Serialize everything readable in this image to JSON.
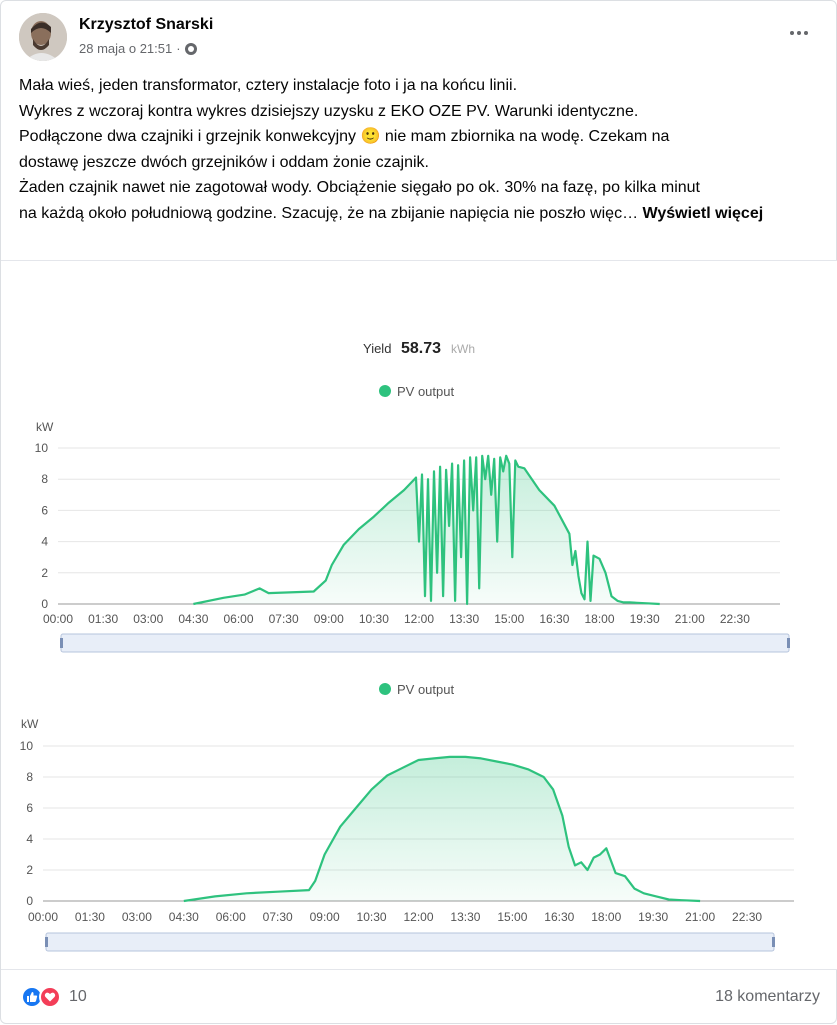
{
  "post": {
    "author": "Krzysztof Snarski",
    "timestamp": "28 maja o 21:51",
    "privacy_icon": "globe-icon",
    "more_icon": "more-options-icon",
    "lines": [
      "Mała wieś, jeden transformator, cztery instalacje foto i ja na końcu linii.",
      "Wykres z wczoraj kontra wykres dzisiejszy uzysku z EKO OZE PV. Warunki identyczne.",
      "Podłączone dwa czajniki i grzejnik konwekcyjny 🙂 nie mam zbiornika na wodę. Czekam na",
      "dostawę jeszcze dwóch grzejników i oddam żonie czajnik.",
      "Żaden czajnik nawet nie zagotował wody. Obciążenie sięgało po ok. 30% na fazę, po kilka minut",
      "na każdą około południową godzine. Szacuję, że na zbijanie napięcia nie poszło więc…"
    ],
    "see_more": "Wyświetl więcej"
  },
  "chart_header": {
    "yield_label": "Yield",
    "yield_value": "58.73",
    "yield_unit": "kWh"
  },
  "colors": {
    "series": "#2ec27e",
    "axis_text": "#555555",
    "grid": "#e6e6e6",
    "slider_border": "#b6c4dc",
    "slider_fill": "#e8eef8"
  },
  "chart_data": [
    {
      "type": "area",
      "legend": [
        "PV output"
      ],
      "ylabel": "kW",
      "ylim": [
        0,
        10
      ],
      "yticks": [
        "0",
        "2",
        "4",
        "6",
        "8",
        "10"
      ],
      "xticks": [
        "00:00",
        "01:30",
        "03:00",
        "04:30",
        "06:00",
        "07:30",
        "09:00",
        "10:30",
        "12:00",
        "13:30",
        "15:00",
        "16:30",
        "18:00",
        "19:30",
        "21:00",
        "22:30"
      ],
      "series": [
        {
          "name": "PV output",
          "x_hours": [
            0,
            4.5,
            5.5,
            6.2,
            6.7,
            7.0,
            8.5,
            8.9,
            9.1,
            9.5,
            10.0,
            10.5,
            11.0,
            11.5,
            11.9,
            12.0,
            12.1,
            12.2,
            12.3,
            12.4,
            12.5,
            12.6,
            12.7,
            12.8,
            12.9,
            13.0,
            13.1,
            13.2,
            13.3,
            13.4,
            13.5,
            13.6,
            13.7,
            13.8,
            13.9,
            14.0,
            14.1,
            14.2,
            14.3,
            14.4,
            14.5,
            14.6,
            14.7,
            14.8,
            14.9,
            15.0,
            15.1,
            15.2,
            15.3,
            15.5,
            16.0,
            16.5,
            17.0,
            17.1,
            17.2,
            17.3,
            17.4,
            17.5,
            17.6,
            17.7,
            17.8,
            17.9,
            18.0,
            18.2,
            18.4,
            18.6,
            18.8,
            19.0,
            19.5,
            20.0,
            20.5,
            21.0,
            21.5
          ],
          "values": [
            0,
            0,
            0.4,
            0.6,
            1.0,
            0.7,
            0.8,
            1.5,
            2.5,
            3.8,
            4.8,
            5.6,
            6.5,
            7.3,
            8.1,
            4.0,
            8.3,
            0.5,
            8.0,
            0.2,
            8.5,
            2.0,
            8.8,
            0.5,
            8.6,
            5.0,
            9.0,
            0.2,
            8.9,
            3.0,
            9.2,
            0.0,
            9.4,
            6.0,
            9.4,
            1.0,
            9.5,
            8.0,
            9.5,
            7.0,
            9.3,
            4.0,
            9.4,
            8.5,
            9.5,
            9.0,
            3.0,
            9.2,
            8.8,
            8.7,
            7.3,
            6.3,
            4.5,
            2.5,
            3.4,
            1.8,
            0.7,
            0.3,
            4.0,
            0.2,
            3.1,
            3.0,
            2.9,
            2.0,
            0.5,
            0.2,
            0.1,
            0.1,
            0.05,
            0.0,
            0.0,
            0.0,
            0.0
          ]
        }
      ]
    },
    {
      "type": "area",
      "legend": [
        "PV output"
      ],
      "ylabel": "kW",
      "ylim": [
        0,
        10
      ],
      "yticks": [
        "0",
        "2",
        "4",
        "6",
        "8",
        "10"
      ],
      "xticks": [
        "00:00",
        "01:30",
        "03:00",
        "04:30",
        "06:00",
        "07:30",
        "09:00",
        "10:30",
        "12:00",
        "13:30",
        "15:00",
        "16:30",
        "18:00",
        "19:30",
        "21:00",
        "22:30"
      ],
      "series": [
        {
          "name": "PV output",
          "x_hours": [
            0,
            4.5,
            5.5,
            6.5,
            7.5,
            8.5,
            8.7,
            9.0,
            9.5,
            10.0,
            10.5,
            11.0,
            11.5,
            12.0,
            12.5,
            13.0,
            13.5,
            14.0,
            14.5,
            15.0,
            15.5,
            16.0,
            16.3,
            16.6,
            16.8,
            17.0,
            17.2,
            17.4,
            17.6,
            17.8,
            18.0,
            18.3,
            18.6,
            18.9,
            19.2,
            19.6,
            20.0,
            20.4,
            21.0
          ],
          "values": [
            0,
            0,
            0.3,
            0.5,
            0.6,
            0.7,
            1.3,
            3.0,
            4.8,
            6.0,
            7.2,
            8.1,
            8.6,
            9.1,
            9.2,
            9.3,
            9.3,
            9.2,
            9.0,
            8.8,
            8.5,
            8.0,
            7.2,
            5.5,
            3.5,
            2.3,
            2.5,
            2.0,
            2.8,
            3.0,
            3.4,
            1.8,
            1.6,
            0.8,
            0.5,
            0.3,
            0.1,
            0.05,
            0.0
          ]
        }
      ]
    }
  ],
  "footer": {
    "like_icon": "like-reaction-icon",
    "love_icon": "love-reaction-icon",
    "reaction_count": "10",
    "comments": "18 komentarzy"
  }
}
